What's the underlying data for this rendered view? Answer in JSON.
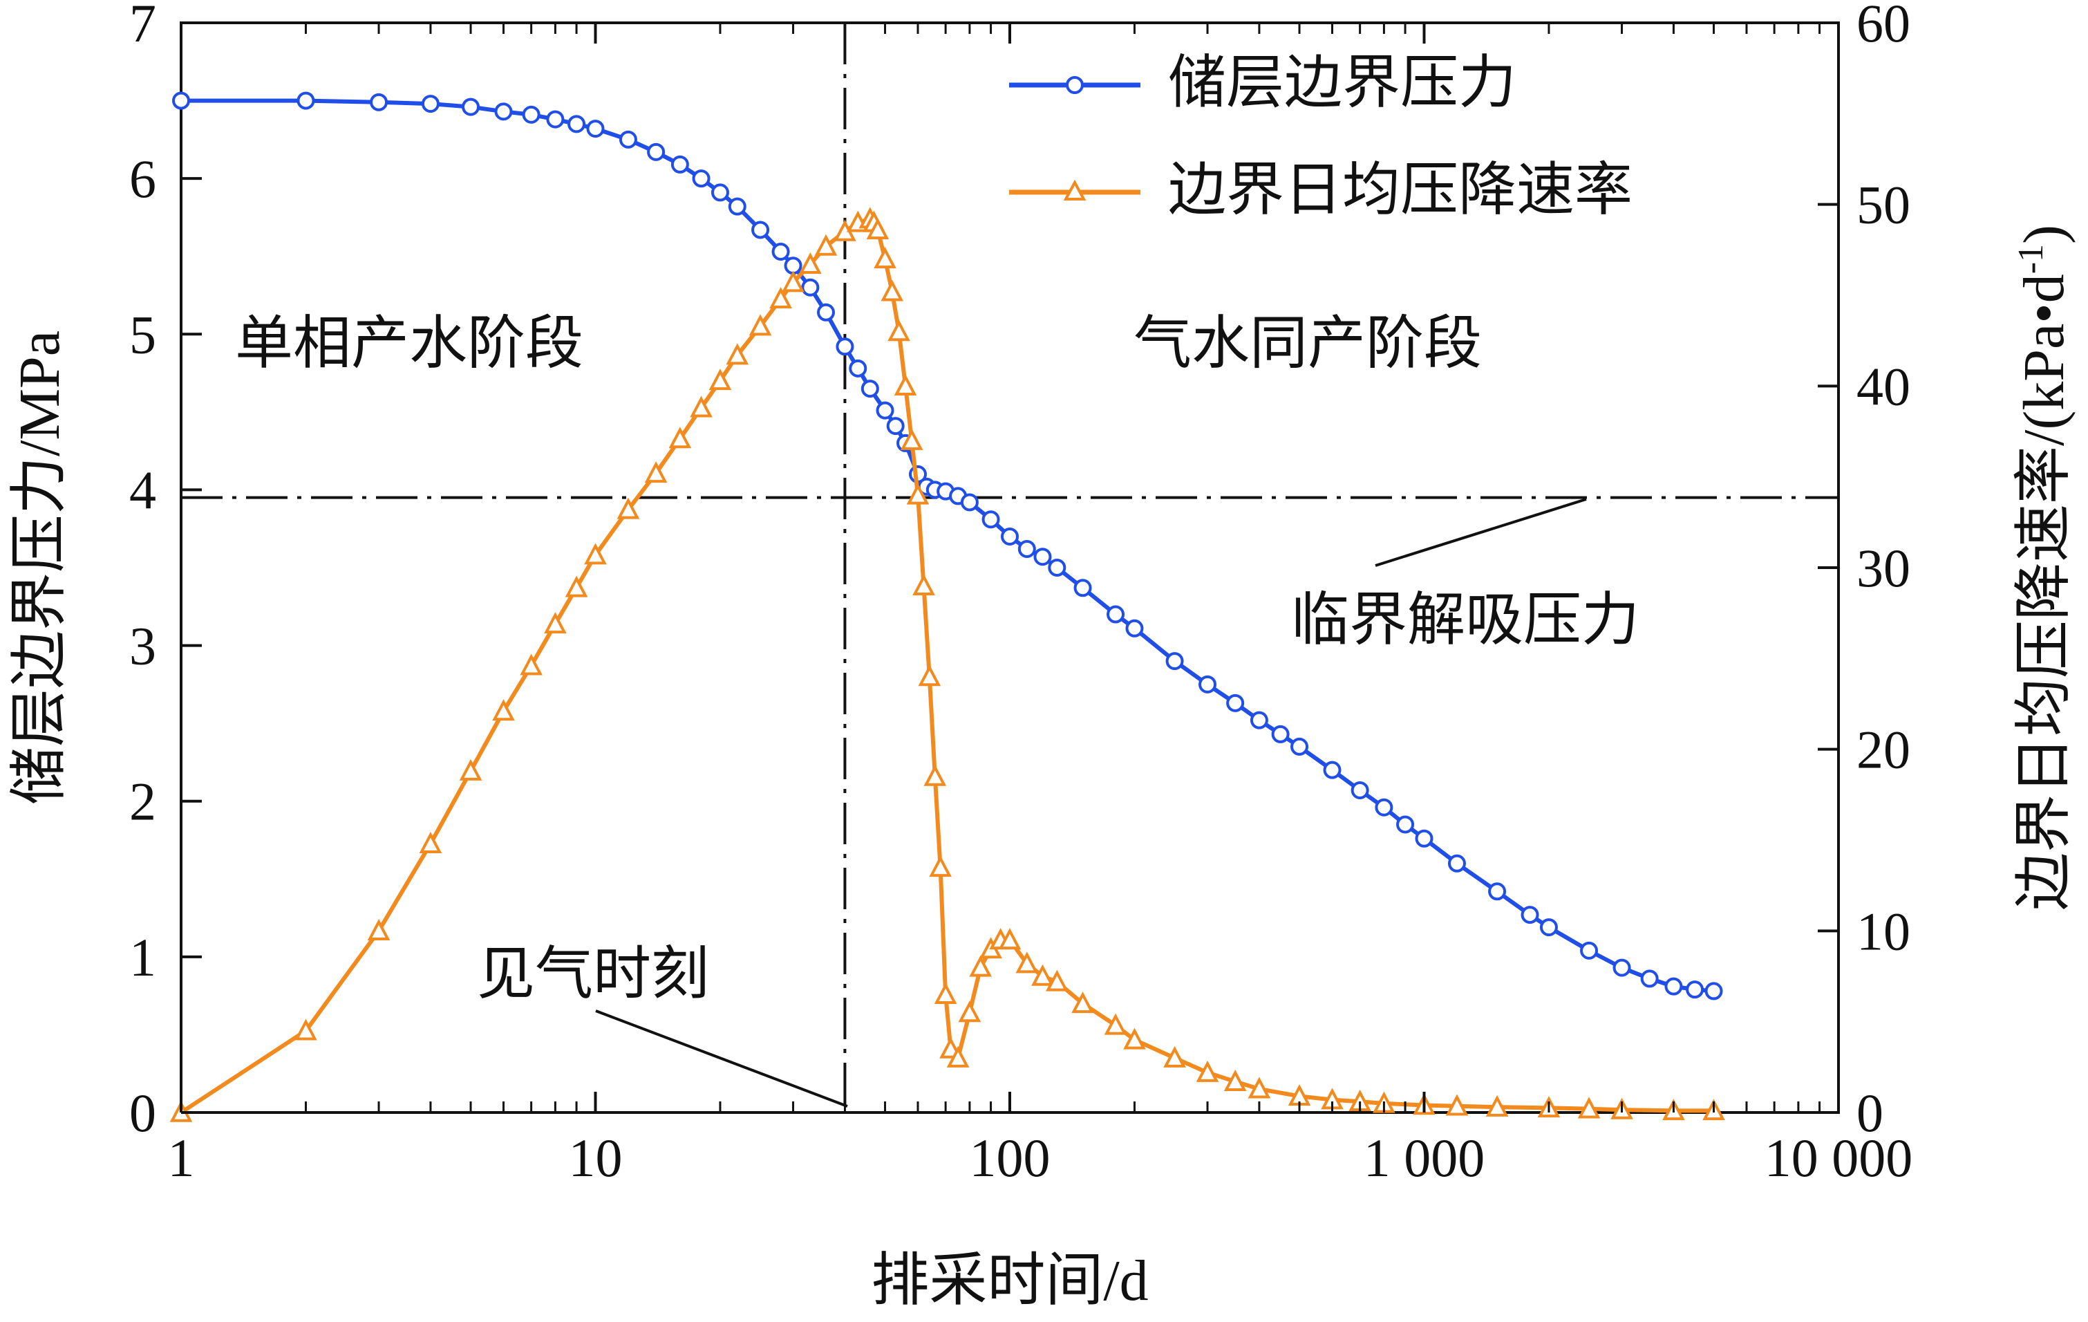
{
  "chart_data": {
    "type": "line",
    "xlabel": "排采时间/d",
    "ylabel_left": "储层边界压力/MPa",
    "ylabel_right": "边界日均压降速率/(kPa•d",
    "ylabel_right_sup": "-1",
    "ylabel_right_close": ")",
    "x_scale": "log",
    "xlim": [
      1,
      10000
    ],
    "ylim_left": [
      0,
      7
    ],
    "ylim_right": [
      0,
      60
    ],
    "x_ticks": [
      {
        "value": 1,
        "label": "1"
      },
      {
        "value": 10,
        "label": "10"
      },
      {
        "value": 100,
        "label": "100"
      },
      {
        "value": 1000,
        "label": "1 000"
      },
      {
        "value": 10000,
        "label": "10 000"
      }
    ],
    "y_left_ticks": [
      {
        "value": 0,
        "label": "0"
      },
      {
        "value": 1,
        "label": "1"
      },
      {
        "value": 2,
        "label": "2"
      },
      {
        "value": 3,
        "label": "3"
      },
      {
        "value": 4,
        "label": "4"
      },
      {
        "value": 5,
        "label": "5"
      },
      {
        "value": 6,
        "label": "6"
      },
      {
        "value": 7,
        "label": "7"
      }
    ],
    "y_right_ticks": [
      {
        "value": 0,
        "label": "0"
      },
      {
        "value": 10,
        "label": "10"
      },
      {
        "value": 20,
        "label": "20"
      },
      {
        "value": 30,
        "label": "30"
      },
      {
        "value": 40,
        "label": "40"
      },
      {
        "value": 50,
        "label": "50"
      },
      {
        "value": 60,
        "label": "60"
      }
    ],
    "grid": false,
    "legend_position": "top-right",
    "series": [
      {
        "name": "储层边界压力",
        "axis": "left",
        "marker": "circle",
        "color": "#1f4ee8",
        "x": [
          1,
          2,
          3,
          4,
          5,
          6,
          7,
          8,
          9,
          10,
          12,
          14,
          16,
          18,
          20,
          22,
          25,
          28,
          30,
          33,
          36,
          40,
          43,
          46,
          50,
          53,
          56,
          60,
          63,
          66,
          70,
          75,
          80,
          90,
          100,
          110,
          120,
          130,
          150,
          180,
          200,
          250,
          300,
          350,
          400,
          450,
          500,
          600,
          700,
          800,
          900,
          1000,
          1200,
          1500,
          1800,
          2000,
          2500,
          3000,
          3500,
          4000,
          4500,
          5000
        ],
        "y": [
          6.5,
          6.5,
          6.49,
          6.48,
          6.46,
          6.43,
          6.41,
          6.38,
          6.35,
          6.32,
          6.25,
          6.17,
          6.09,
          6.0,
          5.91,
          5.82,
          5.67,
          5.53,
          5.44,
          5.3,
          5.14,
          4.92,
          4.78,
          4.65,
          4.51,
          4.41,
          4.3,
          4.1,
          4.02,
          4.0,
          3.99,
          3.96,
          3.92,
          3.81,
          3.7,
          3.62,
          3.57,
          3.5,
          3.37,
          3.2,
          3.11,
          2.9,
          2.75,
          2.63,
          2.52,
          2.43,
          2.35,
          2.2,
          2.07,
          1.96,
          1.85,
          1.76,
          1.6,
          1.42,
          1.27,
          1.19,
          1.04,
          0.93,
          0.86,
          0.81,
          0.79,
          0.78
        ]
      },
      {
        "name": "边界日均压降速率",
        "axis": "right",
        "marker": "triangle",
        "color": "#f28a1e",
        "x": [
          1,
          2,
          3,
          4,
          5,
          6,
          7,
          8,
          9,
          10,
          12,
          14,
          16,
          18,
          20,
          22,
          25,
          28,
          30,
          33,
          36,
          40,
          43,
          46,
          47,
          48,
          50,
          52,
          54,
          56,
          58,
          60,
          62,
          64,
          66,
          68,
          70,
          72,
          75,
          80,
          85,
          90,
          95,
          100,
          110,
          120,
          130,
          150,
          180,
          200,
          250,
          300,
          350,
          400,
          500,
          600,
          700,
          800,
          1000,
          1200,
          1500,
          2000,
          2500,
          3000,
          4000,
          5000
        ],
        "y": [
          0,
          4.5,
          10,
          14.8,
          18.8,
          22.1,
          24.6,
          26.9,
          28.9,
          30.7,
          33.2,
          35.2,
          37.1,
          38.8,
          40.3,
          41.7,
          43.3,
          44.8,
          45.7,
          46.7,
          47.7,
          48.5,
          49.0,
          49.2,
          49.0,
          48.6,
          47.0,
          45.2,
          43.0,
          40.0,
          37.0,
          34.0,
          29.0,
          24.0,
          18.5,
          13.5,
          6.5,
          3.5,
          3.0,
          5.5,
          8.0,
          9.0,
          9.5,
          9.5,
          8.2,
          7.5,
          7.2,
          6.0,
          4.8,
          4.0,
          3.0,
          2.2,
          1.7,
          1.3,
          0.9,
          0.7,
          0.6,
          0.5,
          0.4,
          0.35,
          0.3,
          0.25,
          0.2,
          0.15,
          0.1,
          0.1
        ]
      }
    ],
    "reference_lines": [
      {
        "orientation": "horizontal",
        "axis": "left",
        "value": 3.95,
        "label": "临界解吸压力"
      },
      {
        "orientation": "vertical",
        "value": 40,
        "label": "见气时刻"
      }
    ],
    "annotations": [
      "单相产水阶段",
      "气水同产阶段"
    ]
  }
}
